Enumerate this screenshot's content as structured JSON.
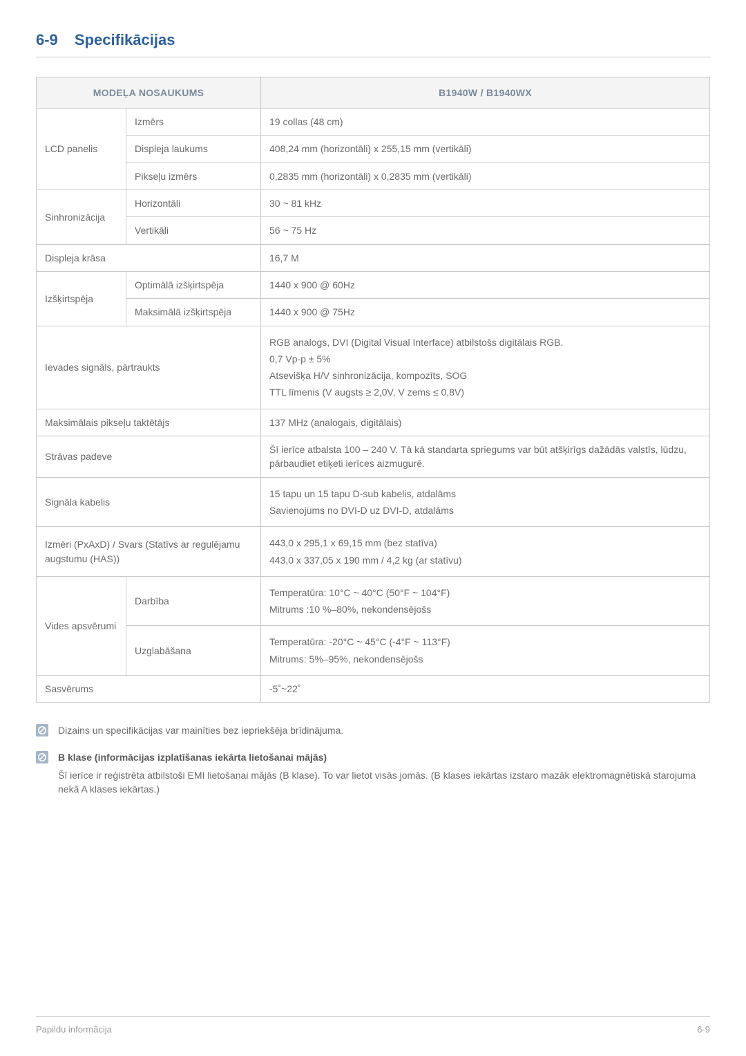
{
  "section": {
    "number": "6-9",
    "title": "Specifikācijas"
  },
  "table": {
    "header_left": "MODEĻA NOSAUKUMS",
    "header_right": "B1940W / B1940WX",
    "rows": [
      {
        "type": "group3",
        "label": "LCD panelis",
        "subs": [
          {
            "sub": "Izmērs",
            "val": "19 collas (48 cm)"
          },
          {
            "sub": "Displeja laukums",
            "val": "408,24 mm (horizontāli) x 255,15 mm (vertikāli)"
          },
          {
            "sub": "Pikseļu izmērs",
            "val": "0,2835 mm (horizontāli) x 0,2835 mm (vertikāli)"
          }
        ]
      },
      {
        "type": "group2",
        "label": "Sinhronizācija",
        "subs": [
          {
            "sub": "Horizontāli",
            "val": "30 ~ 81 kHz"
          },
          {
            "sub": "Vertikāli",
            "val": "56 ~ 75 Hz"
          }
        ]
      },
      {
        "type": "span2",
        "label": "Displeja krāsa",
        "val": "16,7 M"
      },
      {
        "type": "group2",
        "label": "Izšķirtspēja",
        "subs": [
          {
            "sub": "Optimālā izšķirtspēja",
            "val": "1440 x 900 @ 60Hz"
          },
          {
            "sub": "Maksimālā izšķirtspēja",
            "val": "1440 x 900 @ 75Hz"
          }
        ]
      },
      {
        "type": "span2multi",
        "label": "Ievades signāls, pārtraukts",
        "lines": [
          "RGB analogs, DVI (Digital Visual Interface) atbilstošs digitālais RGB.",
          "0,7 Vp-p ± 5%",
          "Atsevišķa H/V sinhronizācija, kompozīts, SOG",
          "TTL līmenis (V augsts ≥ 2,0V, V zems ≤ 0,8V)"
        ]
      },
      {
        "type": "span2",
        "label": "Maksimālais pikseļu taktētājs",
        "val": "137 MHz (analogais, digitālais)"
      },
      {
        "type": "span2",
        "label": "Strāvas padeve",
        "val": "Šī ierīce atbalsta 100 – 240 V. Tā kā standarta spriegums var būt atšķirīgs dažādās valstīs, lūdzu, pārbaudiet etiķeti ierīces aizmugurē."
      },
      {
        "type": "span2multi",
        "label": "Signāla kabelis",
        "lines": [
          "15 tapu un 15 tapu D-sub kabelis, atdalāms",
          "Savienojums no DVI-D uz DVI-D, atdalāms"
        ]
      },
      {
        "type": "span2multi",
        "label": "Izmēri (PxAxD) / Svars (Statīvs ar regulējamu augstumu (HAS))",
        "lines": [
          "443,0 x 295,1 x 69,15 mm (bez statīva)",
          "443,0 x 337,05 x 190 mm / 4,2 kg (ar statīvu)"
        ]
      },
      {
        "type": "group2multi",
        "label": "Vides apsvērumi",
        "subs": [
          {
            "sub": "Darbība",
            "lines": [
              "Temperatūra: 10°C ~ 40°C (50°F ~ 104°F)",
              "Mitrums :10 %–80%, nekondensējošs"
            ]
          },
          {
            "sub": "Uzglabāšana",
            "lines": [
              "Temperatūra: -20°C ~ 45°C (-4°F ~ 113°F)",
              "Mitrums: 5%–95%, nekondensējošs"
            ]
          }
        ]
      },
      {
        "type": "span2",
        "label": "Sasvērums",
        "val": "-5˚~22˚"
      }
    ]
  },
  "notes": [
    {
      "title": null,
      "body": "Dizains un specifikācijas var mainīties bez iepriekšēja brīdinājuma."
    },
    {
      "title": "B klase (informācijas izplatīšanas iekārta lietošanai mājās)",
      "body": "Šī ierīce ir reģistrēta atbilstoši EMI lietošanai mājās (B klase). To var lietot visās jomās. (B klases iekārtas izstaro mazāk elektromagnētiskā starojuma nekā A klases iekārtas.)"
    }
  ],
  "footer": {
    "left": "Papildu informācija",
    "right": "6-9"
  },
  "colors": {
    "heading": "#2e5f9e",
    "border": "#c9c9c9",
    "header_bg": "#f4f4f4",
    "header_text": "#7a8a9a",
    "body_text": "#6a6a6a",
    "icon_bg": "#a6b5c8",
    "icon_stroke": "#ffffff"
  }
}
